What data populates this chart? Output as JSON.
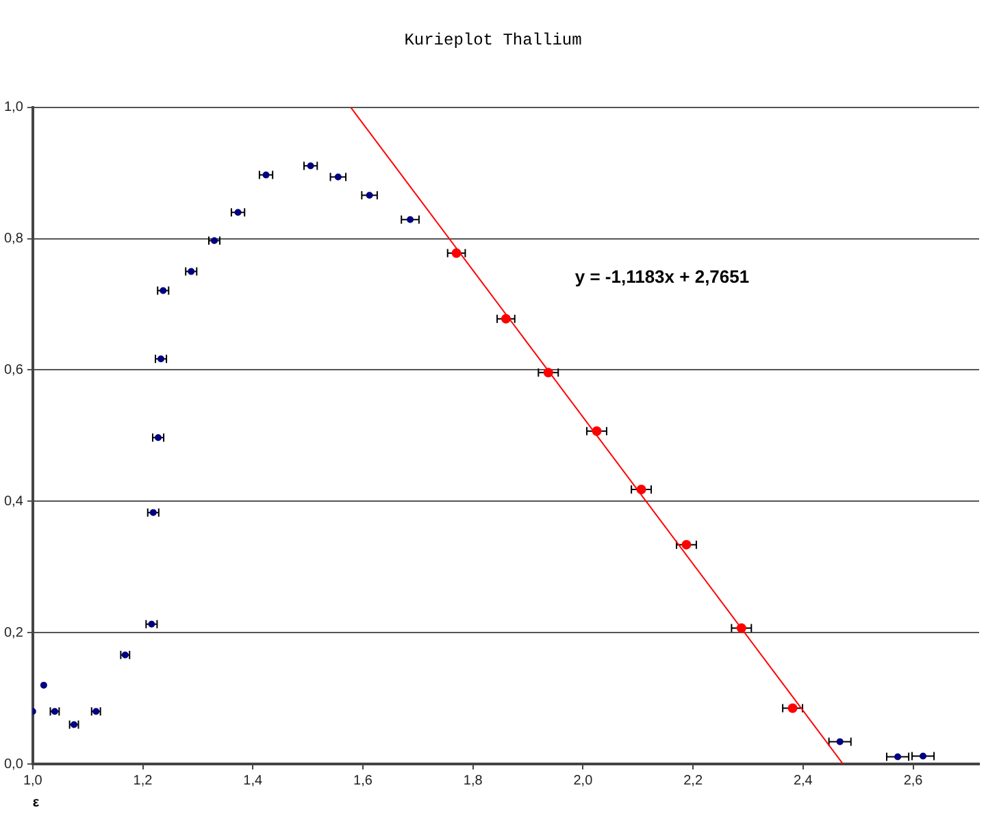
{
  "chart_data": {
    "type": "scatter",
    "title": "Kurieplot Thallium",
    "xlabel": "ε",
    "xlim": [
      1,
      2.72
    ],
    "ylim": [
      0,
      1
    ],
    "xticks": [
      {
        "value": 1,
        "label": "1,0"
      },
      {
        "value": 1.2,
        "label": "1,2"
      },
      {
        "value": 1.4,
        "label": "1,4"
      },
      {
        "value": 1.6,
        "label": "1,6"
      },
      {
        "value": 1.8,
        "label": "1,8"
      },
      {
        "value": 2,
        "label": "2,0"
      },
      {
        "value": 2.2,
        "label": "2,2"
      },
      {
        "value": 2.4,
        "label": "2,4"
      },
      {
        "value": 2.6,
        "label": "2,6"
      }
    ],
    "yticks": [
      {
        "value": 0,
        "label": "0,0"
      },
      {
        "value": 0.2,
        "label": "0,2"
      },
      {
        "value": 0.4,
        "label": "0,4"
      },
      {
        "value": 0.6,
        "label": "0,6"
      },
      {
        "value": 0.8,
        "label": "0,8"
      },
      {
        "value": 1,
        "label": "1,0"
      }
    ],
    "grid": "y",
    "legend": false,
    "marker": "circle",
    "annotations": [
      "y = -1,1183x + 2,7651"
    ],
    "series": [
      {
        "color": "#000080",
        "x": [
          1.0,
          1.02,
          1.04,
          1.075,
          1.115,
          1.168,
          1.216,
          1.219,
          1.228,
          1.233,
          1.237,
          1.288,
          1.33,
          1.373,
          1.424,
          1.505,
          1.555,
          1.612,
          1.686
        ],
        "values": [
          0.08,
          0.12,
          0.08,
          0.06,
          0.08,
          0.166,
          0.213,
          0.383,
          0.497,
          0.617,
          0.721,
          0.75,
          0.797,
          0.84,
          0.897,
          0.911,
          0.894,
          0.866,
          0.829
        ],
        "xerrors": [
          null,
          null,
          0.008,
          0.008,
          0.008,
          0.008,
          0.01,
          0.01,
          0.01,
          0.01,
          0.01,
          0.01,
          0.01,
          0.012,
          0.012,
          0.012,
          0.014,
          0.014,
          0.016
        ]
      },
      {
        "color": "#ff0000",
        "x": [
          1.77,
          1.86,
          1.937,
          2.025,
          2.106,
          2.188,
          2.288,
          2.381
        ],
        "values": [
          0.778,
          0.678,
          0.596,
          0.507,
          0.418,
          0.334,
          0.207,
          0.085
        ],
        "xerrors": [
          0.016,
          0.016,
          0.018,
          0.018,
          0.018,
          0.018,
          0.018,
          0.018
        ]
      },
      {
        "color": "#000080",
        "x": [
          2.467,
          2.572,
          2.618
        ],
        "values": [
          0.034,
          0.011,
          0.012
        ],
        "xerrors": [
          0.02,
          0.02,
          0.02
        ]
      },
      {
        "type": "line",
        "color": "#ff0000",
        "x": [
          1.578,
          2.4726
        ],
        "values": [
          1,
          0
        ],
        "marker": "none"
      }
    ]
  }
}
